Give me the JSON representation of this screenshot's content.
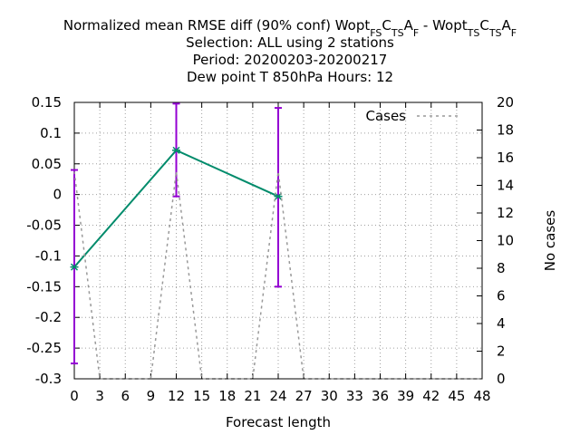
{
  "chart_data": {
    "type": "line",
    "title_lines": [
      "Selection: ALL using     2 stations",
      "Period: 20200203-20200217",
      "Dew point T 850hPa   Hours:  12"
    ],
    "title_main": {
      "prefix": "Normalized mean RMSE diff (90% conf) Wopt",
      "exp1": [
        [
          "FS",
          "sub"
        ],
        [
          "C",
          "n"
        ],
        [
          "TS",
          "sub"
        ],
        [
          "A",
          "n"
        ],
        [
          "F",
          "sub"
        ]
      ],
      "sep": " - Wopt",
      "exp2": [
        [
          "TS",
          "sub"
        ],
        [
          "C",
          "n"
        ],
        [
          "TS",
          "sub"
        ],
        [
          "A",
          "n"
        ],
        [
          "F",
          "sub"
        ]
      ]
    },
    "xlabel": "Forecast length",
    "ylabel": "",
    "y2label": "No cases",
    "xlim": [
      0,
      48
    ],
    "ylim": [
      -0.3,
      0.15
    ],
    "y2lim": [
      0,
      20
    ],
    "x_ticks": [
      0,
      3,
      6,
      9,
      12,
      15,
      18,
      21,
      24,
      27,
      30,
      33,
      36,
      39,
      42,
      45,
      48
    ],
    "y_ticks": [
      "-0.3",
      "-0.25",
      "-0.2",
      "-0.15",
      "-0.1",
      "-0.05",
      "0",
      "0.05",
      "0.1",
      "0.15"
    ],
    "y2_ticks": [
      "0",
      "2",
      "4",
      "6",
      "8",
      "10",
      "12",
      "14",
      "16",
      "18",
      "20"
    ],
    "grid": true,
    "legend_position": "top-right",
    "series": [
      {
        "x": [
          0,
          12,
          24
        ],
        "y": [
          -0.118,
          0.072,
          -0.003
        ],
        "err_low": [
          -0.275,
          -0.003,
          -0.15
        ],
        "err_high": [
          0.04,
          0.148,
          0.141
        ],
        "color": "#008b6b",
        "errcolor": "#9400d3"
      },
      {
        "name": "Cases",
        "axis": "y2",
        "x": [
          0,
          3,
          9,
          12,
          15,
          21,
          24,
          27,
          48
        ],
        "y": [
          15,
          0,
          0,
          15,
          0,
          0,
          15,
          0,
          0
        ],
        "color": "#999999",
        "dashed": true
      }
    ]
  }
}
